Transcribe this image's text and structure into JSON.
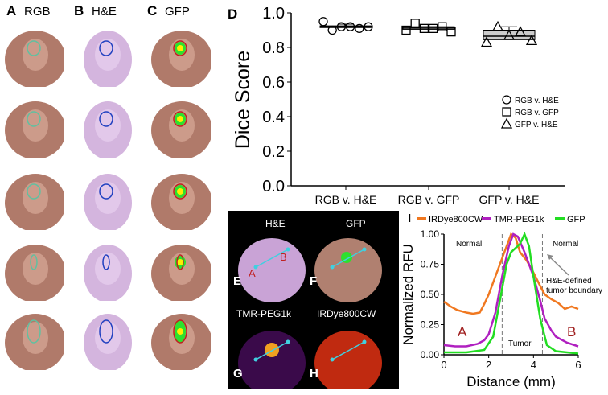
{
  "panels": {
    "A": {
      "letter": "A",
      "title": "RGB"
    },
    "B": {
      "letter": "B",
      "title": "H&E"
    },
    "C": {
      "letter": "C",
      "title": "GFP"
    },
    "D": {
      "letter": "D"
    },
    "E": {
      "letter": "E",
      "title": "H&E",
      "point_a": "A",
      "point_b": "B"
    },
    "F": {
      "letter": "F",
      "title": "GFP"
    },
    "G": {
      "letter": "G",
      "title": "TMR-PEG1k"
    },
    "H": {
      "letter": "H",
      "title": "IRDye800CW"
    },
    "I": {
      "letter": "I"
    }
  },
  "colors": {
    "rgb_tissue": "#b07a6a",
    "he_tissue": "#c9a3d6",
    "gfp_signal": "#2ee02e",
    "irdye": "#f07820",
    "tmr": "#b020c0",
    "gfp": "#22dd22",
    "roi_line": "#40d0e0"
  },
  "chart_data": [
    {
      "type": "box",
      "ylabel": "Dice Score",
      "ylim": [
        0,
        1.0
      ],
      "yticks": [
        "0.0",
        "0.2",
        "0.4",
        "0.6",
        "0.8",
        "1.0"
      ],
      "categories": [
        "RGB v. H&E",
        "RGB v. GFP",
        "GFP v. H&E"
      ],
      "legend": {
        "position": "right",
        "entries": [
          {
            "label": "RGB v. H&E",
            "marker": "circle"
          },
          {
            "label": "RGB v. GFP",
            "marker": "square"
          },
          {
            "label": "GFP v. H&E",
            "marker": "triangle"
          }
        ]
      },
      "series": [
        {
          "marker": "circle",
          "points": [
            0.95,
            0.9,
            0.92,
            0.92,
            0.91,
            0.92
          ],
          "box": {
            "min": 0.915,
            "q1": 0.915,
            "median": 0.92,
            "q3": 0.925,
            "max": 0.935
          }
        },
        {
          "marker": "square",
          "points": [
            0.9,
            0.94,
            0.91,
            0.91,
            0.92,
            0.89
          ],
          "box": {
            "min": 0.905,
            "q1": 0.905,
            "median": 0.912,
            "q3": 0.92,
            "max": 0.92
          }
        },
        {
          "marker": "triangle",
          "points": [
            0.83,
            0.92,
            0.87,
            0.89,
            0.84
          ],
          "box": {
            "min": 0.84,
            "q1": 0.845,
            "median": 0.865,
            "q3": 0.9,
            "max": 0.92
          }
        }
      ]
    },
    {
      "type": "line",
      "xlabel": "Distance (mm)",
      "ylabel": "Normalized RFU",
      "xlim": [
        0,
        6
      ],
      "ylim": [
        0,
        1.0
      ],
      "xticks": [
        "0",
        "2",
        "4",
        "6"
      ],
      "yticks": [
        "0.00",
        "0.25",
        "0.50",
        "0.75",
        "1.00"
      ],
      "legend": "top",
      "annotations": {
        "normal_left": "Normal",
        "normal_right": "Normal",
        "tumor": "Tumor",
        "boundary": "H&E-defined tumor boundary",
        "point_a": "A",
        "point_b": "B"
      },
      "boundaries": [
        2.6,
        4.4
      ],
      "series": [
        {
          "name": "IRDye800CW",
          "color": "#f07820",
          "x": [
            0,
            0.3,
            0.6,
            1,
            1.3,
            1.6,
            1.8,
            2,
            2.3,
            2.6,
            2.9,
            3,
            3.2,
            3.4,
            3.7,
            4,
            4.3,
            4.5,
            4.8,
            5.1,
            5.4,
            5.7,
            6
          ],
          "y": [
            0.44,
            0.4,
            0.37,
            0.35,
            0.34,
            0.35,
            0.42,
            0.5,
            0.65,
            0.8,
            0.95,
            1.0,
            0.97,
            0.85,
            0.78,
            0.68,
            0.57,
            0.5,
            0.46,
            0.43,
            0.38,
            0.4,
            0.38
          ]
        },
        {
          "name": "TMR-PEG1k",
          "color": "#b020c0",
          "x": [
            0,
            0.5,
            1,
            1.5,
            1.8,
            2,
            2.3,
            2.6,
            2.9,
            3.1,
            3.3,
            3.6,
            4,
            4.3,
            4.5,
            4.8,
            5,
            5.5,
            6
          ],
          "y": [
            0.08,
            0.07,
            0.07,
            0.09,
            0.12,
            0.17,
            0.35,
            0.65,
            0.9,
            1.0,
            0.98,
            0.85,
            0.65,
            0.45,
            0.3,
            0.2,
            0.15,
            0.1,
            0.07
          ]
        },
        {
          "name": "GFP",
          "color": "#22dd22",
          "x": [
            0,
            1,
            1.8,
            2.2,
            2.5,
            2.8,
            3,
            3.4,
            3.6,
            3.8,
            4,
            4.3,
            4.6,
            5,
            6
          ],
          "y": [
            0.02,
            0.02,
            0.04,
            0.15,
            0.45,
            0.75,
            0.85,
            0.92,
            1.0,
            0.9,
            0.65,
            0.3,
            0.08,
            0.03,
            0.01
          ]
        }
      ]
    }
  ]
}
